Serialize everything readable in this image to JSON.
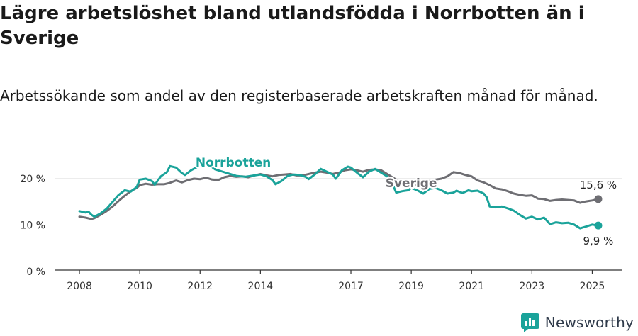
{
  "title": "Lägre arbetslöshet bland utlandsfödda i Norrbotten än i Sverige",
  "subtitle": "Arbetssökande som andel av den registerbaserade arbetskraften månad för månad.",
  "brand": {
    "name": "Newsworthy",
    "logo_icon": "newsworthy-bar-chart-logo",
    "color": "#2f3a4a"
  },
  "chart_data": {
    "type": "line",
    "x_unit": "year (decimal)",
    "xlim": [
      2007.2,
      2026.0
    ],
    "ylim": [
      0,
      20
    ],
    "x_ticks": [
      {
        "value": 2008,
        "label": "2008"
      },
      {
        "value": 2010,
        "label": "2010"
      },
      {
        "value": 2012,
        "label": "2012"
      },
      {
        "value": 2014,
        "label": "2014"
      },
      {
        "value": 2017,
        "label": "2017"
      },
      {
        "value": 2019,
        "label": "2019"
      },
      {
        "value": 2021,
        "label": "2021"
      },
      {
        "value": 2023,
        "label": "2023"
      },
      {
        "value": 2025,
        "label": "2025"
      }
    ],
    "y_ticks": [
      {
        "value": 0,
        "label": "0 %"
      },
      {
        "value": 10,
        "label": "10 %"
      },
      {
        "value": 20,
        "label": "20 %"
      }
    ],
    "grid": true,
    "series": [
      {
        "name": "Sverige",
        "color": "#6e6e73",
        "end_label": "15,6 %",
        "points": [
          [
            2008.0,
            11.8
          ],
          [
            2008.2,
            11.6
          ],
          [
            2008.4,
            11.3
          ],
          [
            2008.5,
            11.5
          ],
          [
            2008.7,
            12.2
          ],
          [
            2008.9,
            13.0
          ],
          [
            2009.1,
            14.0
          ],
          [
            2009.3,
            15.2
          ],
          [
            2009.5,
            16.3
          ],
          [
            2009.7,
            17.3
          ],
          [
            2009.9,
            18.0
          ],
          [
            2010.0,
            18.6
          ],
          [
            2010.2,
            18.9
          ],
          [
            2010.4,
            18.7
          ],
          [
            2010.6,
            18.8
          ],
          [
            2010.8,
            18.8
          ],
          [
            2011.0,
            19.1
          ],
          [
            2011.2,
            19.6
          ],
          [
            2011.4,
            19.2
          ],
          [
            2011.6,
            19.7
          ],
          [
            2011.8,
            20.0
          ],
          [
            2012.0,
            19.9
          ],
          [
            2012.2,
            20.2
          ],
          [
            2012.4,
            19.8
          ],
          [
            2012.6,
            19.7
          ],
          [
            2012.8,
            20.3
          ],
          [
            2013.0,
            20.6
          ],
          [
            2013.2,
            20.4
          ],
          [
            2013.4,
            20.5
          ],
          [
            2013.6,
            20.3
          ],
          [
            2013.8,
            20.7
          ],
          [
            2014.0,
            21.0
          ],
          [
            2014.2,
            20.7
          ],
          [
            2014.4,
            20.5
          ],
          [
            2014.6,
            20.8
          ],
          [
            2014.8,
            20.9
          ],
          [
            2015.0,
            21.0
          ],
          [
            2015.2,
            20.7
          ],
          [
            2015.4,
            20.7
          ],
          [
            2015.6,
            21.0
          ],
          [
            2015.8,
            21.3
          ],
          [
            2016.0,
            21.5
          ],
          [
            2016.2,
            21.3
          ],
          [
            2016.4,
            21.0
          ],
          [
            2016.6,
            21.3
          ],
          [
            2016.8,
            21.8
          ],
          [
            2017.0,
            22.0
          ],
          [
            2017.2,
            21.8
          ],
          [
            2017.4,
            21.5
          ],
          [
            2017.6,
            21.9
          ],
          [
            2017.8,
            22.0
          ],
          [
            2018.0,
            21.8
          ],
          [
            2018.2,
            21.0
          ],
          [
            2018.4,
            20.2
          ],
          [
            2018.6,
            19.4
          ],
          [
            2018.8,
            18.8
          ],
          [
            2019.0,
            18.5
          ],
          [
            2019.2,
            18.6
          ],
          [
            2019.4,
            19.0
          ],
          [
            2019.6,
            19.5
          ],
          [
            2019.8,
            19.8
          ],
          [
            2020.0,
            20.0
          ],
          [
            2020.2,
            20.5
          ],
          [
            2020.4,
            21.4
          ],
          [
            2020.6,
            21.2
          ],
          [
            2020.8,
            20.8
          ],
          [
            2021.0,
            20.5
          ],
          [
            2021.2,
            19.6
          ],
          [
            2021.4,
            19.2
          ],
          [
            2021.6,
            18.6
          ],
          [
            2021.8,
            17.9
          ],
          [
            2022.0,
            17.7
          ],
          [
            2022.2,
            17.3
          ],
          [
            2022.4,
            16.8
          ],
          [
            2022.6,
            16.5
          ],
          [
            2022.8,
            16.3
          ],
          [
            2023.0,
            16.4
          ],
          [
            2023.2,
            15.7
          ],
          [
            2023.4,
            15.6
          ],
          [
            2023.6,
            15.2
          ],
          [
            2023.8,
            15.4
          ],
          [
            2024.0,
            15.5
          ],
          [
            2024.2,
            15.4
          ],
          [
            2024.4,
            15.3
          ],
          [
            2024.6,
            14.8
          ],
          [
            2024.8,
            15.1
          ],
          [
            2025.0,
            15.3
          ],
          [
            2025.2,
            15.6
          ]
        ]
      },
      {
        "name": "Norrbotten",
        "color": "#1aa39a",
        "end_label": "9,9 %",
        "points": [
          [
            2008.0,
            13.0
          ],
          [
            2008.2,
            12.7
          ],
          [
            2008.3,
            12.9
          ],
          [
            2008.4,
            12.2
          ],
          [
            2008.5,
            11.8
          ],
          [
            2008.7,
            12.5
          ],
          [
            2008.9,
            13.5
          ],
          [
            2009.1,
            15.0
          ],
          [
            2009.3,
            16.5
          ],
          [
            2009.5,
            17.5
          ],
          [
            2009.7,
            17.2
          ],
          [
            2009.9,
            18.2
          ],
          [
            2010.0,
            19.8
          ],
          [
            2010.2,
            20.0
          ],
          [
            2010.4,
            19.5
          ],
          [
            2010.5,
            18.7
          ],
          [
            2010.7,
            20.5
          ],
          [
            2010.9,
            21.4
          ],
          [
            2011.0,
            22.7
          ],
          [
            2011.2,
            22.4
          ],
          [
            2011.4,
            21.2
          ],
          [
            2011.5,
            20.8
          ],
          [
            2011.7,
            21.8
          ],
          [
            2011.9,
            22.5
          ],
          [
            2012.0,
            23.0
          ],
          [
            2012.2,
            22.8
          ],
          [
            2012.3,
            23.0
          ],
          [
            2012.5,
            22.0
          ],
          [
            2012.7,
            21.6
          ],
          [
            2013.0,
            21.0
          ],
          [
            2013.2,
            20.6
          ],
          [
            2013.5,
            20.4
          ],
          [
            2013.8,
            20.7
          ],
          [
            2014.0,
            20.9
          ],
          [
            2014.2,
            20.5
          ],
          [
            2014.4,
            19.7
          ],
          [
            2014.5,
            18.8
          ],
          [
            2014.7,
            19.5
          ],
          [
            2014.9,
            20.6
          ],
          [
            2015.1,
            20.9
          ],
          [
            2015.3,
            20.8
          ],
          [
            2015.5,
            20.4
          ],
          [
            2015.6,
            19.9
          ],
          [
            2015.8,
            20.9
          ],
          [
            2016.0,
            22.1
          ],
          [
            2016.2,
            21.5
          ],
          [
            2016.4,
            20.9
          ],
          [
            2016.5,
            20.0
          ],
          [
            2016.7,
            21.8
          ],
          [
            2016.9,
            22.6
          ],
          [
            2017.0,
            22.4
          ],
          [
            2017.2,
            21.3
          ],
          [
            2017.4,
            20.3
          ],
          [
            2017.6,
            21.5
          ],
          [
            2017.8,
            22.1
          ],
          [
            2018.0,
            21.3
          ],
          [
            2018.2,
            20.5
          ],
          [
            2018.3,
            19.8
          ],
          [
            2018.4,
            18.5
          ],
          [
            2018.5,
            17.0
          ],
          [
            2018.7,
            17.3
          ],
          [
            2018.9,
            17.5
          ],
          [
            2019.0,
            18.0
          ],
          [
            2019.2,
            17.5
          ],
          [
            2019.4,
            16.8
          ],
          [
            2019.6,
            17.8
          ],
          [
            2019.8,
            18.0
          ],
          [
            2020.0,
            17.5
          ],
          [
            2020.2,
            16.8
          ],
          [
            2020.4,
            17.0
          ],
          [
            2020.5,
            17.4
          ],
          [
            2020.7,
            16.9
          ],
          [
            2020.9,
            17.5
          ],
          [
            2021.0,
            17.3
          ],
          [
            2021.2,
            17.4
          ],
          [
            2021.4,
            16.8
          ],
          [
            2021.5,
            16.0
          ],
          [
            2021.6,
            14.0
          ],
          [
            2021.8,
            13.8
          ],
          [
            2022.0,
            14.0
          ],
          [
            2022.2,
            13.6
          ],
          [
            2022.4,
            13.1
          ],
          [
            2022.6,
            12.2
          ],
          [
            2022.8,
            11.4
          ],
          [
            2023.0,
            11.8
          ],
          [
            2023.2,
            11.2
          ],
          [
            2023.4,
            11.6
          ],
          [
            2023.6,
            10.2
          ],
          [
            2023.8,
            10.6
          ],
          [
            2024.0,
            10.4
          ],
          [
            2024.2,
            10.5
          ],
          [
            2024.4,
            10.1
          ],
          [
            2024.6,
            9.3
          ],
          [
            2024.8,
            9.7
          ],
          [
            2025.0,
            10.1
          ],
          [
            2025.2,
            9.9
          ]
        ]
      }
    ]
  }
}
